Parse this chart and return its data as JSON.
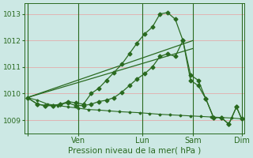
{
  "xlabel": "Pression niveau de la mer( hPa )",
  "bg_color": "#cce8e4",
  "grid_color": "#e8a0a0",
  "line_color": "#2a6a20",
  "marker": "D",
  "marker_size": 2.5,
  "ylim": [
    1008.5,
    1013.4
  ],
  "yticks": [
    1009,
    1010,
    1011,
    1012,
    1013
  ],
  "xlim": [
    -2,
    170
  ],
  "x_tick_positions": [
    0,
    40,
    90,
    130,
    168
  ],
  "x_tick_labels": [
    "",
    "Ven",
    "Lun",
    "Sam",
    "Dim"
  ],
  "vlines": [
    0,
    40,
    90,
    130,
    168
  ],
  "series_flat": {
    "x": [
      0,
      8,
      16,
      24,
      32,
      40,
      48,
      56,
      64,
      72,
      80,
      88,
      96,
      104,
      112,
      120,
      128,
      136,
      144,
      152,
      160,
      168
    ],
    "y": [
      1009.85,
      1009.75,
      1009.6,
      1009.55,
      1009.5,
      1009.45,
      1009.4,
      1009.38,
      1009.35,
      1009.32,
      1009.3,
      1009.28,
      1009.25,
      1009.22,
      1009.2,
      1009.18,
      1009.16,
      1009.14,
      1009.12,
      1009.1,
      1009.08,
      1009.05
    ]
  },
  "series_main": {
    "x": [
      0,
      8,
      14,
      20,
      26,
      32,
      38,
      44,
      50,
      56,
      62,
      68,
      74,
      80,
      86,
      92,
      98,
      104,
      110,
      116,
      122,
      128,
      134,
      140,
      146,
      152,
      158,
      164,
      168
    ],
    "y": [
      1009.85,
      1009.6,
      1009.55,
      1009.55,
      1009.6,
      1009.7,
      1009.65,
      1009.6,
      1010.0,
      1010.2,
      1010.5,
      1010.8,
      1011.1,
      1011.5,
      1011.9,
      1012.25,
      1012.5,
      1013.0,
      1013.05,
      1012.8,
      1012.0,
      1010.7,
      1010.5,
      1009.8,
      1009.1,
      1009.1,
      1008.85,
      1009.5,
      1009.05
    ]
  },
  "series_lower_zigzag": {
    "x": [
      0,
      8,
      14,
      20,
      26,
      32,
      38,
      44,
      50,
      56,
      62,
      68,
      74,
      80,
      86,
      92,
      98,
      104,
      110,
      116,
      122,
      128,
      134,
      140,
      146,
      152,
      158,
      164,
      168
    ],
    "y": [
      1009.85,
      1009.6,
      1009.55,
      1009.55,
      1009.6,
      1009.65,
      1009.55,
      1009.55,
      1009.6,
      1009.7,
      1009.75,
      1009.85,
      1010.05,
      1010.3,
      1010.55,
      1010.75,
      1011.0,
      1011.4,
      1011.5,
      1011.4,
      1012.0,
      1010.5,
      1010.3,
      1009.8,
      1009.1,
      1009.1,
      1008.85,
      1009.5,
      1009.05
    ]
  },
  "trend1": {
    "x": [
      0,
      130
    ],
    "y": [
      1009.85,
      1012.0
    ]
  },
  "trend2": {
    "x": [
      0,
      130
    ],
    "y": [
      1009.85,
      1011.7
    ]
  }
}
